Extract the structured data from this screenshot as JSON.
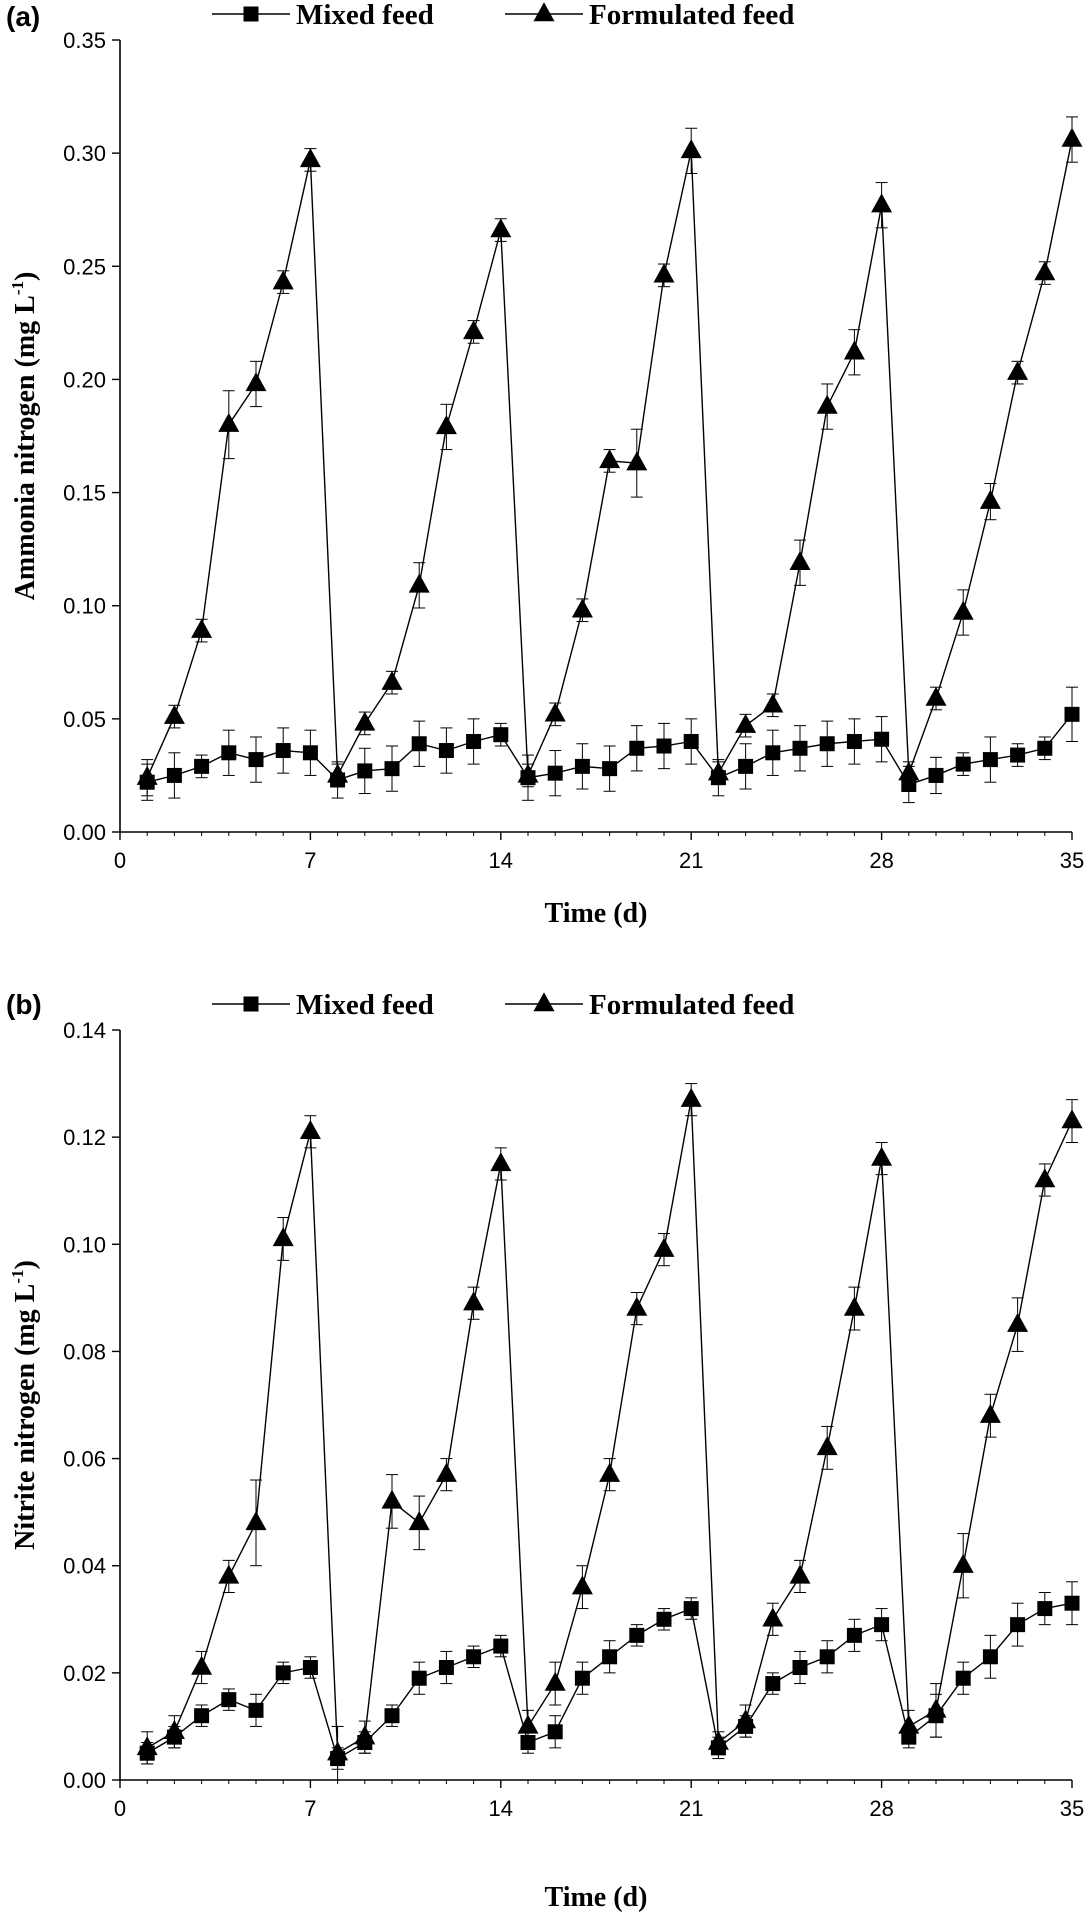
{
  "chart_data": [
    {
      "type": "line",
      "panel_label": "(a)",
      "title": "",
      "xlabel": "Time (d)",
      "ylabel_main": "Ammonia nitrogen (mg L",
      "ylabel_sup": "-1",
      "ylabel_end": ")",
      "xlim": [
        0,
        35
      ],
      "ylim": [
        0,
        0.35
      ],
      "xticks": [
        0,
        7,
        14,
        21,
        28,
        35
      ],
      "xtick_labels": [
        "0",
        "7",
        "14",
        "21",
        "28",
        "35"
      ],
      "yticks": [
        0,
        0.05,
        0.1,
        0.15,
        0.2,
        0.25,
        0.3,
        0.35
      ],
      "ytick_labels": [
        "0.00",
        "0.05",
        "0.10",
        "0.15",
        "0.20",
        "0.25",
        "0.30",
        "0.35"
      ],
      "legend_position": "top-center",
      "grid": false,
      "x": [
        1,
        2,
        3,
        4,
        5,
        6,
        7,
        8,
        9,
        10,
        11,
        12,
        13,
        14,
        15,
        16,
        17,
        18,
        19,
        20,
        21,
        22,
        23,
        24,
        25,
        26,
        27,
        28,
        29,
        30,
        31,
        32,
        33,
        34,
        35
      ],
      "series": [
        {
          "name": "Mixed feed",
          "marker": "square",
          "values": [
            0.022,
            0.025,
            0.029,
            0.035,
            0.032,
            0.036,
            0.035,
            0.023,
            0.027,
            0.028,
            0.039,
            0.036,
            0.04,
            0.043,
            0.024,
            0.026,
            0.029,
            0.028,
            0.037,
            0.038,
            0.04,
            0.024,
            0.029,
            0.035,
            0.037,
            0.039,
            0.04,
            0.041,
            0.021,
            0.025,
            0.03,
            0.032,
            0.034,
            0.037,
            0.052
          ],
          "errors": [
            0.008,
            0.01,
            0.005,
            0.01,
            0.01,
            0.01,
            0.01,
            0.008,
            0.01,
            0.01,
            0.01,
            0.01,
            0.01,
            0.005,
            0.01,
            0.01,
            0.01,
            0.01,
            0.01,
            0.01,
            0.01,
            0.008,
            0.01,
            0.01,
            0.01,
            0.01,
            0.01,
            0.01,
            0.008,
            0.008,
            0.005,
            0.01,
            0.005,
            0.005,
            0.012
          ]
        },
        {
          "name": "Formulated feed",
          "marker": "triangle",
          "values": [
            0.024,
            0.051,
            0.089,
            0.18,
            0.198,
            0.243,
            0.297,
            0.025,
            0.048,
            0.066,
            0.109,
            0.179,
            0.221,
            0.266,
            0.025,
            0.052,
            0.098,
            0.164,
            0.163,
            0.246,
            0.301,
            0.026,
            0.047,
            0.056,
            0.119,
            0.188,
            0.212,
            0.277,
            0.026,
            0.059,
            0.097,
            0.146,
            0.203,
            0.247,
            0.306
          ],
          "errors": [
            0.008,
            0.005,
            0.005,
            0.015,
            0.01,
            0.005,
            0.005,
            0.005,
            0.005,
            0.005,
            0.01,
            0.01,
            0.005,
            0.005,
            0.005,
            0.005,
            0.005,
            0.005,
            0.015,
            0.005,
            0.01,
            0.005,
            0.005,
            0.005,
            0.01,
            0.01,
            0.01,
            0.01,
            0.005,
            0.005,
            0.01,
            0.008,
            0.005,
            0.005,
            0.01
          ]
        }
      ]
    },
    {
      "type": "line",
      "panel_label": "(b)",
      "title": "",
      "xlabel": "Time (d)",
      "ylabel_main": "Nitrite nitrogen (mg L",
      "ylabel_sup": "-1",
      "ylabel_end": ")",
      "xlim": [
        0,
        35
      ],
      "ylim": [
        0,
        0.14
      ],
      "xticks": [
        0,
        7,
        14,
        21,
        28,
        35
      ],
      "xtick_labels": [
        "0",
        "7",
        "14",
        "21",
        "28",
        "35"
      ],
      "yticks": [
        0,
        0.02,
        0.04,
        0.06,
        0.08,
        0.1,
        0.12,
        0.14
      ],
      "ytick_labels": [
        "0.00",
        "0.02",
        "0.04",
        "0.06",
        "0.08",
        "0.10",
        "0.12",
        "0.14"
      ],
      "legend_position": "top-center",
      "grid": false,
      "x": [
        1,
        2,
        3,
        4,
        5,
        6,
        7,
        8,
        9,
        10,
        11,
        12,
        13,
        14,
        15,
        16,
        17,
        18,
        19,
        20,
        21,
        22,
        23,
        24,
        25,
        26,
        27,
        28,
        29,
        30,
        31,
        32,
        33,
        34,
        35
      ],
      "series": [
        {
          "name": "Mixed feed",
          "marker": "square",
          "values": [
            0.005,
            0.008,
            0.012,
            0.015,
            0.013,
            0.02,
            0.021,
            0.004,
            0.007,
            0.012,
            0.019,
            0.021,
            0.023,
            0.025,
            0.007,
            0.009,
            0.019,
            0.023,
            0.027,
            0.03,
            0.032,
            0.006,
            0.01,
            0.018,
            0.021,
            0.023,
            0.027,
            0.029,
            0.008,
            0.012,
            0.019,
            0.023,
            0.029,
            0.032,
            0.033
          ],
          "errors": [
            0.002,
            0.002,
            0.002,
            0.002,
            0.003,
            0.002,
            0.002,
            0.002,
            0.002,
            0.002,
            0.003,
            0.003,
            0.002,
            0.002,
            0.002,
            0.003,
            0.003,
            0.003,
            0.002,
            0.002,
            0.002,
            0.002,
            0.002,
            0.002,
            0.003,
            0.003,
            0.003,
            0.003,
            0.002,
            0.004,
            0.003,
            0.004,
            0.004,
            0.003,
            0.004
          ]
        },
        {
          "name": "Formulated feed",
          "marker": "triangle",
          "values": [
            0.006,
            0.009,
            0.021,
            0.038,
            0.048,
            0.101,
            0.121,
            0.005,
            0.008,
            0.052,
            0.048,
            0.057,
            0.089,
            0.115,
            0.01,
            0.018,
            0.036,
            0.057,
            0.088,
            0.099,
            0.127,
            0.007,
            0.011,
            0.03,
            0.038,
            0.062,
            0.088,
            0.116,
            0.01,
            0.013,
            0.04,
            0.068,
            0.085,
            0.112,
            0.123
          ],
          "errors": [
            0.003,
            0.003,
            0.003,
            0.003,
            0.008,
            0.004,
            0.003,
            0.005,
            0.003,
            0.005,
            0.005,
            0.003,
            0.003,
            0.003,
            0.003,
            0.004,
            0.004,
            0.003,
            0.003,
            0.003,
            0.003,
            0.002,
            0.003,
            0.003,
            0.003,
            0.004,
            0.004,
            0.003,
            0.003,
            0.005,
            0.006,
            0.004,
            0.005,
            0.003,
            0.004
          ]
        }
      ]
    }
  ]
}
